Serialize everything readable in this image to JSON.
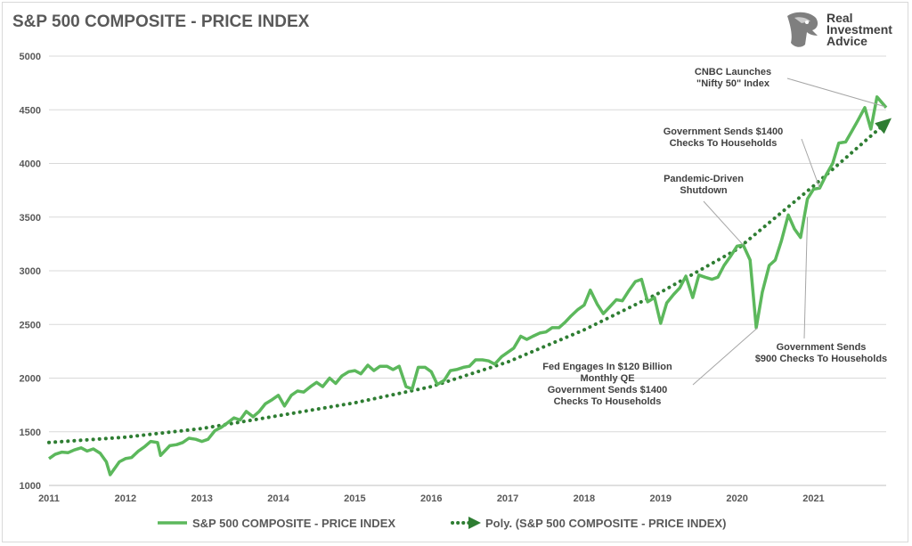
{
  "brand": {
    "line1": "Real",
    "line2": "Investment",
    "line3": "Advice",
    "logo_icon": "eagle-head-icon"
  },
  "colors": {
    "series": "#5cb85c",
    "trend": "#2e7d32",
    "grid": "#d9d9d9",
    "text": "#595959",
    "callout_line": "#a6a6a6"
  },
  "chart_data": {
    "type": "line",
    "title": "S&P 500 COMPOSITE - PRICE INDEX",
    "xlabel": "",
    "ylabel": "",
    "xlim": [
      2011.0,
      2021.95
    ],
    "ylim": [
      1000,
      5000
    ],
    "yticks": [
      1000,
      1500,
      2000,
      2500,
      3000,
      3500,
      4000,
      4500,
      5000
    ],
    "xticks": [
      "2011",
      "2012",
      "2013",
      "2014",
      "2015",
      "2016",
      "2017",
      "2018",
      "2019",
      "2020",
      "2021"
    ],
    "grid": true,
    "legend_position": "bottom",
    "series": [
      {
        "name": "S&P 500 COMPOSITE - PRICE INDEX",
        "style": "solid",
        "points": [
          [
            2011.0,
            1250
          ],
          [
            2011.08,
            1290
          ],
          [
            2011.17,
            1310
          ],
          [
            2011.25,
            1305
          ],
          [
            2011.33,
            1330
          ],
          [
            2011.42,
            1350
          ],
          [
            2011.5,
            1320
          ],
          [
            2011.58,
            1340
          ],
          [
            2011.67,
            1300
          ],
          [
            2011.75,
            1220
          ],
          [
            2011.8,
            1100
          ],
          [
            2011.92,
            1220
          ],
          [
            2012.0,
            1250
          ],
          [
            2012.08,
            1260
          ],
          [
            2012.17,
            1320
          ],
          [
            2012.25,
            1360
          ],
          [
            2012.33,
            1410
          ],
          [
            2012.42,
            1400
          ],
          [
            2012.46,
            1280
          ],
          [
            2012.58,
            1370
          ],
          [
            2012.67,
            1380
          ],
          [
            2012.75,
            1400
          ],
          [
            2012.83,
            1440
          ],
          [
            2012.92,
            1430
          ],
          [
            2013.0,
            1410
          ],
          [
            2013.08,
            1430
          ],
          [
            2013.17,
            1510
          ],
          [
            2013.25,
            1540
          ],
          [
            2013.33,
            1580
          ],
          [
            2013.42,
            1630
          ],
          [
            2013.5,
            1610
          ],
          [
            2013.58,
            1690
          ],
          [
            2013.67,
            1640
          ],
          [
            2013.75,
            1690
          ],
          [
            2013.83,
            1760
          ],
          [
            2013.92,
            1800
          ],
          [
            2014.0,
            1840
          ],
          [
            2014.08,
            1740
          ],
          [
            2014.17,
            1840
          ],
          [
            2014.25,
            1880
          ],
          [
            2014.33,
            1870
          ],
          [
            2014.42,
            1920
          ],
          [
            2014.5,
            1960
          ],
          [
            2014.58,
            1920
          ],
          [
            2014.67,
            2000
          ],
          [
            2014.75,
            1950
          ],
          [
            2014.83,
            2020
          ],
          [
            2014.92,
            2060
          ],
          [
            2015.0,
            2070
          ],
          [
            2015.08,
            2040
          ],
          [
            2015.17,
            2120
          ],
          [
            2015.25,
            2070
          ],
          [
            2015.33,
            2110
          ],
          [
            2015.42,
            2110
          ],
          [
            2015.5,
            2080
          ],
          [
            2015.58,
            2110
          ],
          [
            2015.67,
            1920
          ],
          [
            2015.75,
            1900
          ],
          [
            2015.83,
            2100
          ],
          [
            2015.92,
            2100
          ],
          [
            2016.0,
            2060
          ],
          [
            2016.08,
            1940
          ],
          [
            2016.17,
            1980
          ],
          [
            2016.25,
            2070
          ],
          [
            2016.33,
            2080
          ],
          [
            2016.42,
            2100
          ],
          [
            2016.5,
            2110
          ],
          [
            2016.58,
            2170
          ],
          [
            2016.67,
            2170
          ],
          [
            2016.75,
            2160
          ],
          [
            2016.83,
            2130
          ],
          [
            2016.92,
            2200
          ],
          [
            2017.0,
            2240
          ],
          [
            2017.08,
            2280
          ],
          [
            2017.17,
            2390
          ],
          [
            2017.25,
            2360
          ],
          [
            2017.33,
            2390
          ],
          [
            2017.42,
            2420
          ],
          [
            2017.5,
            2430
          ],
          [
            2017.58,
            2470
          ],
          [
            2017.67,
            2470
          ],
          [
            2017.75,
            2520
          ],
          [
            2017.83,
            2580
          ],
          [
            2017.92,
            2640
          ],
          [
            2018.0,
            2680
          ],
          [
            2018.08,
            2820
          ],
          [
            2018.17,
            2690
          ],
          [
            2018.25,
            2600
          ],
          [
            2018.33,
            2660
          ],
          [
            2018.42,
            2730
          ],
          [
            2018.5,
            2720
          ],
          [
            2018.58,
            2810
          ],
          [
            2018.67,
            2900
          ],
          [
            2018.75,
            2920
          ],
          [
            2018.83,
            2710
          ],
          [
            2018.92,
            2750
          ],
          [
            2019.0,
            2510
          ],
          [
            2019.08,
            2700
          ],
          [
            2019.17,
            2780
          ],
          [
            2019.25,
            2840
          ],
          [
            2019.33,
            2950
          ],
          [
            2019.42,
            2750
          ],
          [
            2019.5,
            2960
          ],
          [
            2019.58,
            2940
          ],
          [
            2019.67,
            2920
          ],
          [
            2019.75,
            2940
          ],
          [
            2019.83,
            3050
          ],
          [
            2019.92,
            3140
          ],
          [
            2020.0,
            3230
          ],
          [
            2020.08,
            3240
          ],
          [
            2020.17,
            3100
          ],
          [
            2020.25,
            2470
          ],
          [
            2020.33,
            2800
          ],
          [
            2020.42,
            3050
          ],
          [
            2020.5,
            3100
          ],
          [
            2020.58,
            3280
          ],
          [
            2020.67,
            3520
          ],
          [
            2020.75,
            3390
          ],
          [
            2020.83,
            3310
          ],
          [
            2020.92,
            3670
          ],
          [
            2021.0,
            3760
          ],
          [
            2021.08,
            3770
          ],
          [
            2021.17,
            3900
          ],
          [
            2021.25,
            4000
          ],
          [
            2021.33,
            4190
          ],
          [
            2021.42,
            4200
          ],
          [
            2021.5,
            4300
          ],
          [
            2021.58,
            4400
          ],
          [
            2021.67,
            4520
          ],
          [
            2021.75,
            4320
          ],
          [
            2021.83,
            4620
          ],
          [
            2021.95,
            4520
          ]
        ]
      },
      {
        "name": "Poly. (S&P 500 COMPOSITE - PRICE INDEX)",
        "style": "dotted",
        "points": [
          [
            2011.0,
            1400
          ],
          [
            2012.0,
            1450
          ],
          [
            2013.0,
            1530
          ],
          [
            2014.0,
            1650
          ],
          [
            2015.0,
            1770
          ],
          [
            2016.0,
            1920
          ],
          [
            2017.0,
            2150
          ],
          [
            2018.0,
            2450
          ],
          [
            2019.0,
            2800
          ],
          [
            2020.0,
            3200
          ],
          [
            2021.0,
            3790
          ],
          [
            2021.95,
            4380
          ]
        ]
      }
    ],
    "annotations": [
      {
        "lines": [
          "CNBC Launches",
          "\"Nifty 50\" Index"
        ],
        "target": [
          2021.93,
          4530
        ]
      },
      {
        "lines": [
          "Government Sends $1400",
          "Checks To Households"
        ],
        "target": [
          2021.08,
          3770
        ]
      },
      {
        "lines": [
          "Pandemic-Driven",
          "Shutdown"
        ],
        "target": [
          2020.08,
          3240
        ]
      },
      {
        "lines": [
          "Government Sends",
          "$900 Checks To Households"
        ],
        "target": [
          2020.92,
          3500
        ]
      },
      {
        "lines": [
          "Fed Engages In $120 Billion",
          "Monthly QE",
          "Government Sends $1400",
          "Checks To Households"
        ],
        "target": [
          2020.27,
          2470
        ]
      }
    ]
  }
}
